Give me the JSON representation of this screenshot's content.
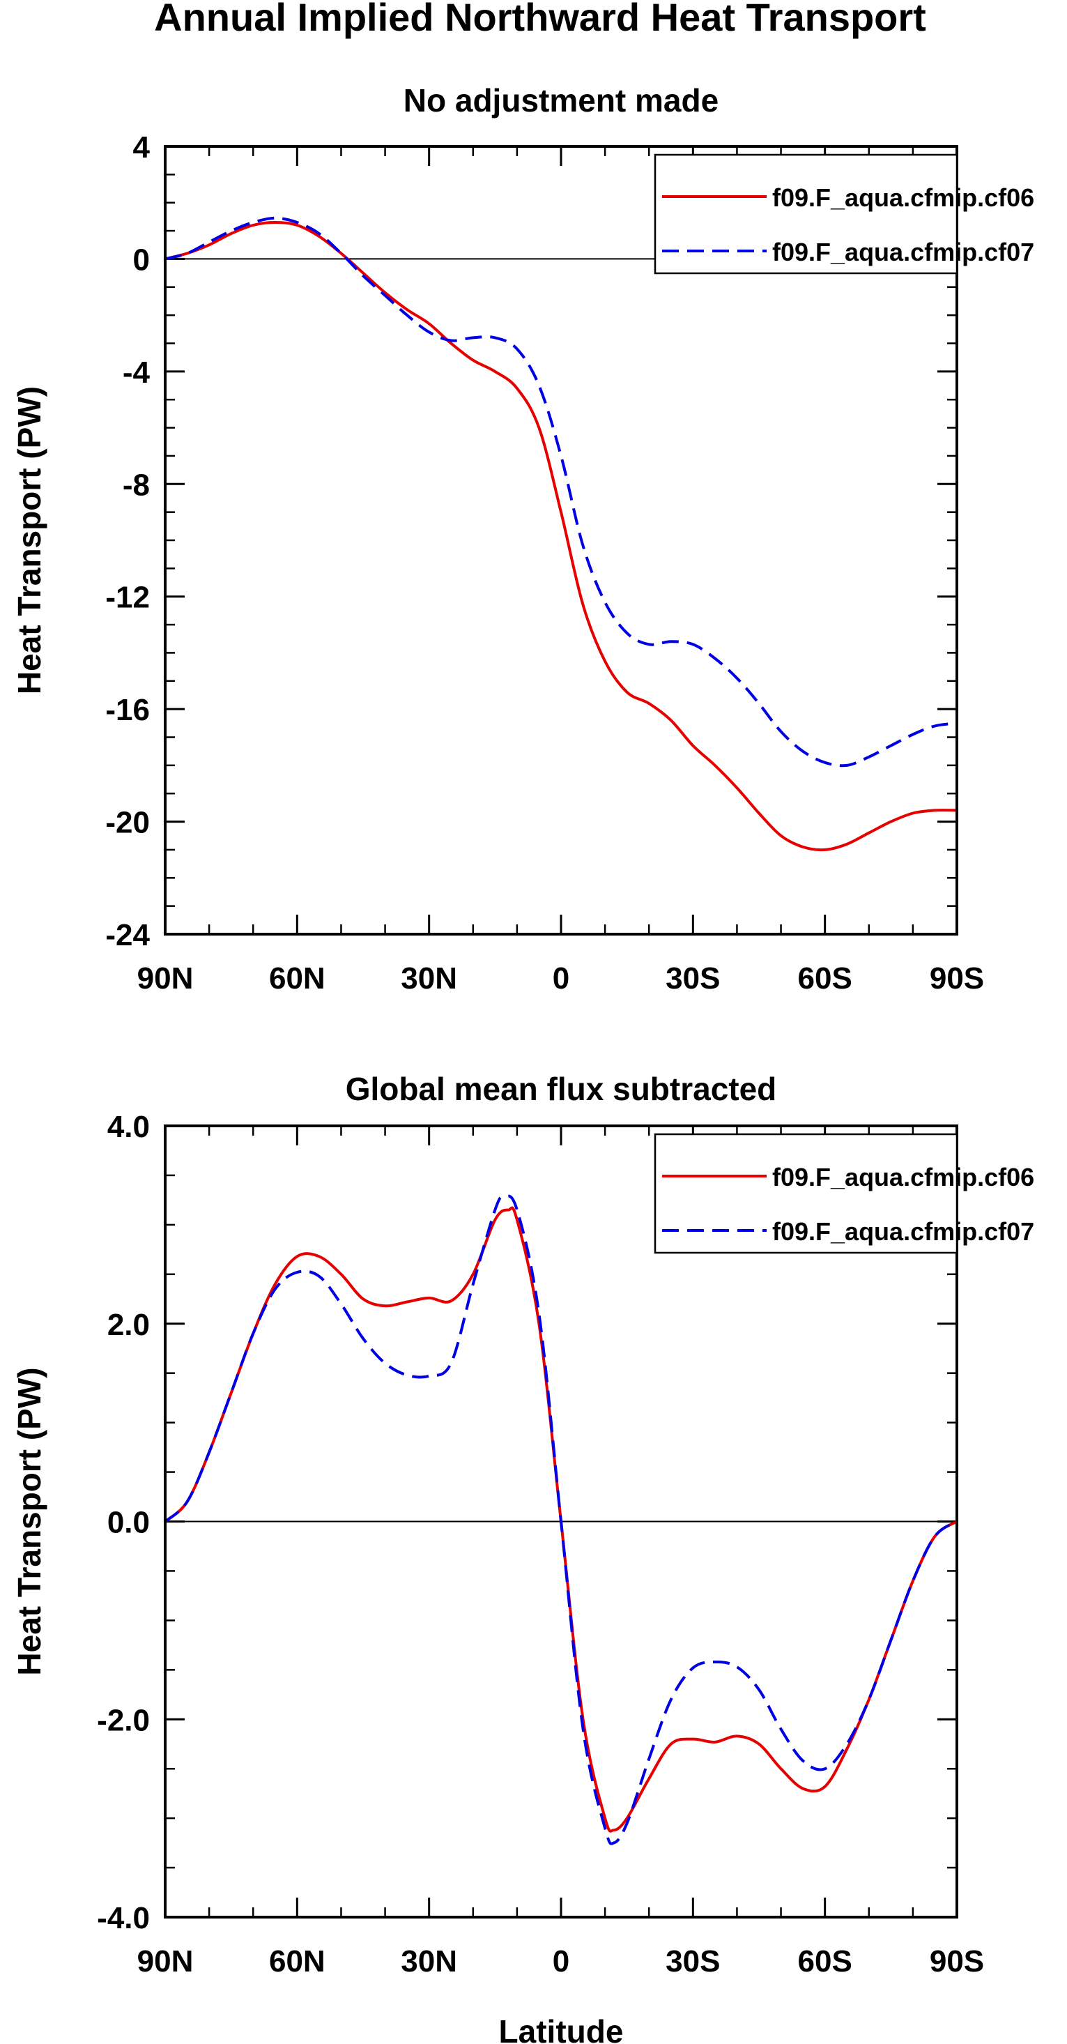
{
  "main_title": "Annual Implied Northward Heat Transport",
  "colors": {
    "series1": "#e60000",
    "series2": "#0000e6",
    "axis": "#000000"
  },
  "chart_data": [
    {
      "type": "line",
      "title": "No adjustment made",
      "xlabel": "",
      "ylabel": "Heat Transport (PW)",
      "xlim": [
        90,
        -90
      ],
      "ylim": [
        -24,
        4
      ],
      "x_ticks": [
        90,
        60,
        30,
        0,
        -30,
        -60,
        -90
      ],
      "x_tick_labels": [
        "90N",
        "60N",
        "30N",
        "0",
        "30S",
        "60S",
        "90S"
      ],
      "y_ticks": [
        4,
        0,
        -4,
        -8,
        -12,
        -16,
        -20,
        -24
      ],
      "y_tick_labels": [
        "4",
        "0",
        "-4",
        "-8",
        "-12",
        "-16",
        "-20",
        "-24"
      ],
      "zero_line": true,
      "legend_position": "top-right",
      "series": [
        {
          "name": "f09.F_aqua.cfmip.cf06",
          "style": "solid",
          "points": [
            [
              90,
              0
            ],
            [
              85,
              0.2
            ],
            [
              80,
              0.5
            ],
            [
              75,
              0.9
            ],
            [
              70,
              1.2
            ],
            [
              65,
              1.3
            ],
            [
              60,
              1.2
            ],
            [
              55,
              0.8
            ],
            [
              50,
              0.2
            ],
            [
              45,
              -0.5
            ],
            [
              40,
              -1.2
            ],
            [
              35,
              -1.8
            ],
            [
              30,
              -2.3
            ],
            [
              25,
              -3.0
            ],
            [
              20,
              -3.6
            ],
            [
              15,
              -4.0
            ],
            [
              10,
              -4.6
            ],
            [
              5,
              -6.0
            ],
            [
              0,
              -9.0
            ],
            [
              -5,
              -12.3
            ],
            [
              -10,
              -14.3
            ],
            [
              -15,
              -15.4
            ],
            [
              -20,
              -15.8
            ],
            [
              -25,
              -16.4
            ],
            [
              -30,
              -17.3
            ],
            [
              -35,
              -18.0
            ],
            [
              -40,
              -18.8
            ],
            [
              -45,
              -19.7
            ],
            [
              -50,
              -20.5
            ],
            [
              -55,
              -20.9
            ],
            [
              -60,
              -21.0
            ],
            [
              -65,
              -20.8
            ],
            [
              -70,
              -20.4
            ],
            [
              -75,
              -20.0
            ],
            [
              -80,
              -19.7
            ],
            [
              -85,
              -19.6
            ],
            [
              -90,
              -19.6
            ]
          ]
        },
        {
          "name": "f09.F_aqua.cfmip.cf07",
          "style": "dashed",
          "points": [
            [
              90,
              0
            ],
            [
              85,
              0.2
            ],
            [
              80,
              0.6
            ],
            [
              75,
              1.0
            ],
            [
              70,
              1.3
            ],
            [
              65,
              1.45
            ],
            [
              60,
              1.3
            ],
            [
              55,
              0.9
            ],
            [
              50,
              0.2
            ],
            [
              45,
              -0.6
            ],
            [
              40,
              -1.3
            ],
            [
              35,
              -2.0
            ],
            [
              30,
              -2.6
            ],
            [
              25,
              -2.9
            ],
            [
              20,
              -2.8
            ],
            [
              15,
              -2.8
            ],
            [
              10,
              -3.2
            ],
            [
              5,
              -4.5
            ],
            [
              0,
              -7.0
            ],
            [
              -5,
              -10.2
            ],
            [
              -10,
              -12.2
            ],
            [
              -15,
              -13.3
            ],
            [
              -20,
              -13.7
            ],
            [
              -25,
              -13.6
            ],
            [
              -30,
              -13.7
            ],
            [
              -35,
              -14.2
            ],
            [
              -40,
              -14.9
            ],
            [
              -45,
              -15.8
            ],
            [
              -50,
              -16.8
            ],
            [
              -55,
              -17.5
            ],
            [
              -60,
              -17.9
            ],
            [
              -65,
              -18.0
            ],
            [
              -70,
              -17.7
            ],
            [
              -75,
              -17.3
            ],
            [
              -80,
              -16.9
            ],
            [
              -85,
              -16.6
            ],
            [
              -90,
              -16.5
            ]
          ]
        }
      ]
    },
    {
      "type": "line",
      "title": "Global mean flux subtracted",
      "xlabel": "Latitude",
      "ylabel": "Heat Transport (PW)",
      "xlim": [
        90,
        -90
      ],
      "ylim": [
        -4,
        4
      ],
      "x_ticks": [
        90,
        60,
        30,
        0,
        -30,
        -60,
        -90
      ],
      "x_tick_labels": [
        "90N",
        "60N",
        "30N",
        "0",
        "30S",
        "60S",
        "90S"
      ],
      "y_ticks": [
        4,
        2,
        0,
        -2,
        -4
      ],
      "y_tick_labels": [
        "4.0",
        "2.0",
        "0.0",
        "-2.0",
        "-4.0"
      ],
      "zero_line": true,
      "legend_position": "top-right",
      "series": [
        {
          "name": "f09.F_aqua.cfmip.cf06",
          "style": "solid",
          "points": [
            [
              90,
              0
            ],
            [
              85,
              0.2
            ],
            [
              80,
              0.7
            ],
            [
              75,
              1.3
            ],
            [
              70,
              1.9
            ],
            [
              65,
              2.4
            ],
            [
              60,
              2.68
            ],
            [
              55,
              2.68
            ],
            [
              50,
              2.5
            ],
            [
              45,
              2.25
            ],
            [
              40,
              2.18
            ],
            [
              35,
              2.22
            ],
            [
              30,
              2.26
            ],
            [
              25,
              2.23
            ],
            [
              20,
              2.5
            ],
            [
              15,
              3.05
            ],
            [
              12,
              3.15
            ],
            [
              10,
              3.05
            ],
            [
              5,
              2.0
            ],
            [
              0,
              0.0
            ],
            [
              -5,
              -2.0
            ],
            [
              -10,
              -3.0
            ],
            [
              -12,
              -3.12
            ],
            [
              -15,
              -3.0
            ],
            [
              -20,
              -2.6
            ],
            [
              -25,
              -2.25
            ],
            [
              -30,
              -2.2
            ],
            [
              -35,
              -2.23
            ],
            [
              -40,
              -2.17
            ],
            [
              -45,
              -2.25
            ],
            [
              -50,
              -2.5
            ],
            [
              -55,
              -2.7
            ],
            [
              -60,
              -2.68
            ],
            [
              -65,
              -2.3
            ],
            [
              -70,
              -1.8
            ],
            [
              -75,
              -1.2
            ],
            [
              -80,
              -0.6
            ],
            [
              -85,
              -0.15
            ],
            [
              -90,
              0
            ]
          ]
        },
        {
          "name": "f09.F_aqua.cfmip.cf07",
          "style": "dashed",
          "points": [
            [
              90,
              0
            ],
            [
              85,
              0.2
            ],
            [
              80,
              0.7
            ],
            [
              75,
              1.3
            ],
            [
              70,
              1.9
            ],
            [
              65,
              2.35
            ],
            [
              60,
              2.52
            ],
            [
              55,
              2.48
            ],
            [
              50,
              2.2
            ],
            [
              45,
              1.85
            ],
            [
              40,
              1.6
            ],
            [
              35,
              1.48
            ],
            [
              30,
              1.47
            ],
            [
              25,
              1.6
            ],
            [
              20,
              2.4
            ],
            [
              15,
              3.15
            ],
            [
              13,
              3.28
            ],
            [
              10,
              3.15
            ],
            [
              5,
              2.1
            ],
            [
              0,
              0.0
            ],
            [
              -5,
              -2.1
            ],
            [
              -10,
              -3.1
            ],
            [
              -12,
              -3.25
            ],
            [
              -15,
              -3.05
            ],
            [
              -20,
              -2.4
            ],
            [
              -25,
              -1.8
            ],
            [
              -30,
              -1.48
            ],
            [
              -35,
              -1.42
            ],
            [
              -40,
              -1.47
            ],
            [
              -45,
              -1.7
            ],
            [
              -50,
              -2.1
            ],
            [
              -55,
              -2.42
            ],
            [
              -60,
              -2.5
            ],
            [
              -65,
              -2.25
            ],
            [
              -70,
              -1.8
            ],
            [
              -75,
              -1.2
            ],
            [
              -80,
              -0.6
            ],
            [
              -85,
              -0.15
            ],
            [
              -90,
              0
            ]
          ]
        }
      ]
    }
  ]
}
